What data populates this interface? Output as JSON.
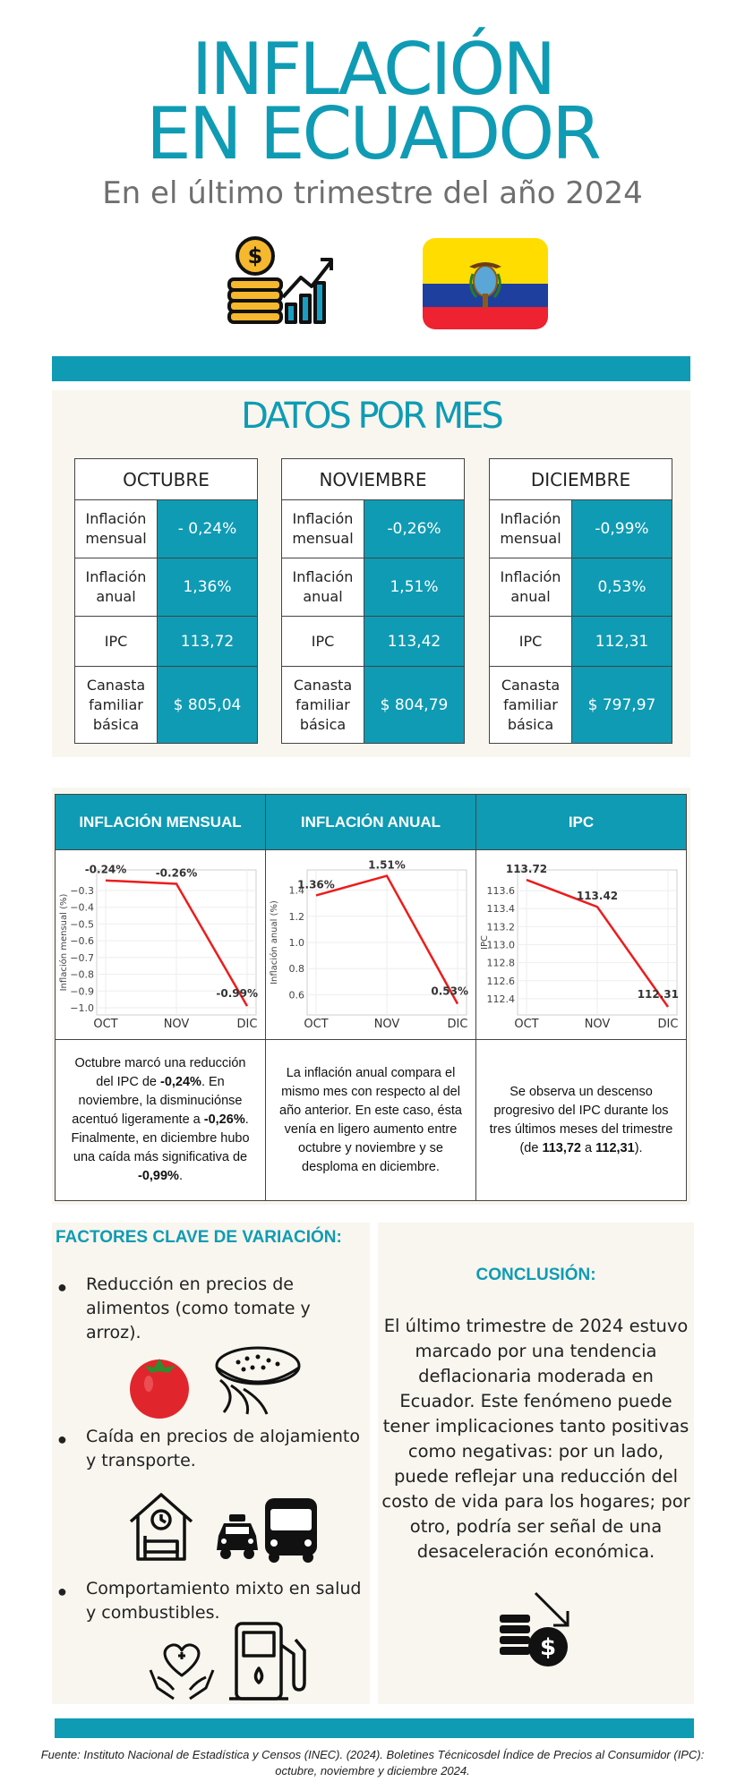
{
  "header": {
    "title_line1": "INFLACIÓN",
    "title_line2": "EN ECUADOR",
    "subtitle": "En el último trimestre del año 2024",
    "icons": [
      "money-growth-icon",
      "ecuador-flag-icon"
    ]
  },
  "colors": {
    "accent": "#0f9bb4",
    "cream": "#f8f6ee",
    "line": "#ee1c1c"
  },
  "datos": {
    "title": "DATOS POR MES",
    "months": [
      {
        "name": "OCTUBRE",
        "rows": [
          {
            "label": "Inflación mensual",
            "value": "- 0,24%"
          },
          {
            "label": "Inflación anual",
            "value": "1,36%"
          },
          {
            "label": "IPC",
            "value": "113,72"
          },
          {
            "label": "Canasta familiar básica",
            "value": "$ 805,04"
          }
        ]
      },
      {
        "name": "NOVIEMBRE",
        "rows": [
          {
            "label": "Inflación mensual",
            "value": "-0,26%"
          },
          {
            "label": "Inflación anual",
            "value": "1,51%"
          },
          {
            "label": "IPC",
            "value": "113,42"
          },
          {
            "label": "Canasta familiar básica",
            "value": "$ 804,79"
          }
        ]
      },
      {
        "name": "DICIEMBRE",
        "rows": [
          {
            "label": "Inflación mensual",
            "value": "-0,99%"
          },
          {
            "label": "Inflación anual",
            "value": "0,53%"
          },
          {
            "label": "IPC",
            "value": "112,31"
          },
          {
            "label": "Canasta familiar básica",
            "value": "$ 797,97"
          }
        ]
      }
    ]
  },
  "charts": {
    "headers": [
      "INFLACIÓN MENSUAL",
      "INFLACIÓN ANUAL",
      "IPC"
    ]
  },
  "chart_data": [
    {
      "type": "line",
      "categories": [
        "OCT",
        "NOV",
        "DIC"
      ],
      "values": [
        -0.24,
        -0.26,
        -0.99
      ],
      "point_labels": [
        "-0.24%",
        "-0.26%",
        "-0.99%"
      ],
      "ylabel": "Inflación mensual (%)",
      "ylim": [
        -1.0,
        -0.22
      ],
      "yticks": [
        -0.3,
        -0.4,
        -0.5,
        -0.6,
        -0.7,
        -0.8,
        -0.9,
        -1.0
      ],
      "ytick_labels": [
        "−0.3",
        "−0.4",
        "−0.5",
        "−0.6",
        "−0.7",
        "−0.8",
        "−0.9",
        "−1.0"
      ],
      "grid": true
    },
    {
      "type": "line",
      "categories": [
        "OCT",
        "NOV",
        "DIC"
      ],
      "values": [
        1.36,
        1.51,
        0.53
      ],
      "point_labels": [
        "1.36%",
        "1.51%",
        "0.53%"
      ],
      "ylabel": "Inflación anual (%)",
      "ylim": [
        0.5,
        1.5
      ],
      "yticks": [
        0.6,
        0.8,
        1.0,
        1.2,
        1.4
      ],
      "ytick_labels": [
        "0.6",
        "0.8",
        "1.0",
        "1.2",
        "1.4"
      ],
      "grid": true
    },
    {
      "type": "line",
      "categories": [
        "OCT",
        "NOV",
        "DIC"
      ],
      "values": [
        113.72,
        113.42,
        112.31
      ],
      "point_labels": [
        "113.72",
        "113.42",
        "112.31"
      ],
      "ylabel": "IPC",
      "ylim": [
        112.3,
        113.75
      ],
      "yticks": [
        112.4,
        112.6,
        112.8,
        113.0,
        113.2,
        113.4,
        113.6
      ],
      "ytick_labels": [
        "112.4",
        "112.6",
        "112.8",
        "113.0",
        "113.2",
        "113.4",
        "113.6"
      ],
      "grid": true
    }
  ],
  "descriptions": {
    "mensual": {
      "p1": "Octubre marcó una reducción del IPC de ",
      "b1": "-0,24%",
      "p2": ". En noviembre, la disminuciónse acentuó ligeramente a ",
      "b2": "-0,26%",
      "p3": ". Finalmente, en diciembre hubo una caída más significativa de ",
      "b3": "-0,99%",
      "p4": "."
    },
    "anual": "La inflación anual compara el mismo mes con respecto al del año anterior. En este caso, ésta venía en ligero aumento entre octubre y noviembre y se desploma en diciembre.",
    "ipc": {
      "p1": "Se observa un descenso progresivo del IPC durante los tres últimos meses del trimestre (de ",
      "b1": "113,72",
      "p2": " a ",
      "b2": "112,31",
      "p3": ")."
    }
  },
  "factors": {
    "title": "FACTORES CLAVE DE VARIACIÓN:",
    "items": [
      "Reducción en precios de alimentos (como tomate y arroz).",
      "Caída en precios de alojamiento y transporte.",
      "Comportamiento mixto en salud y combustibles."
    ]
  },
  "conclusion": {
    "title": "CONCLUSIÓN:",
    "text": "El último trimestre de 2024 estuvo marcado por una tendencia deflacionaria moderada en Ecuador. Este fenómeno puede tener implicaciones tanto positivas como negativas: por un lado, puede reflejar una reducción del costo de vida para los hogares; por otro, podría ser señal de una desaceleración económica."
  },
  "source": {
    "line1": "Fuente: Instituto Nacional de Estadística y Censos (INEC). (2024). Boletines Técnicosdel Índice de Precios al Consumidor (IPC):",
    "line2": "octubre, noviembre y diciembre 2024."
  }
}
